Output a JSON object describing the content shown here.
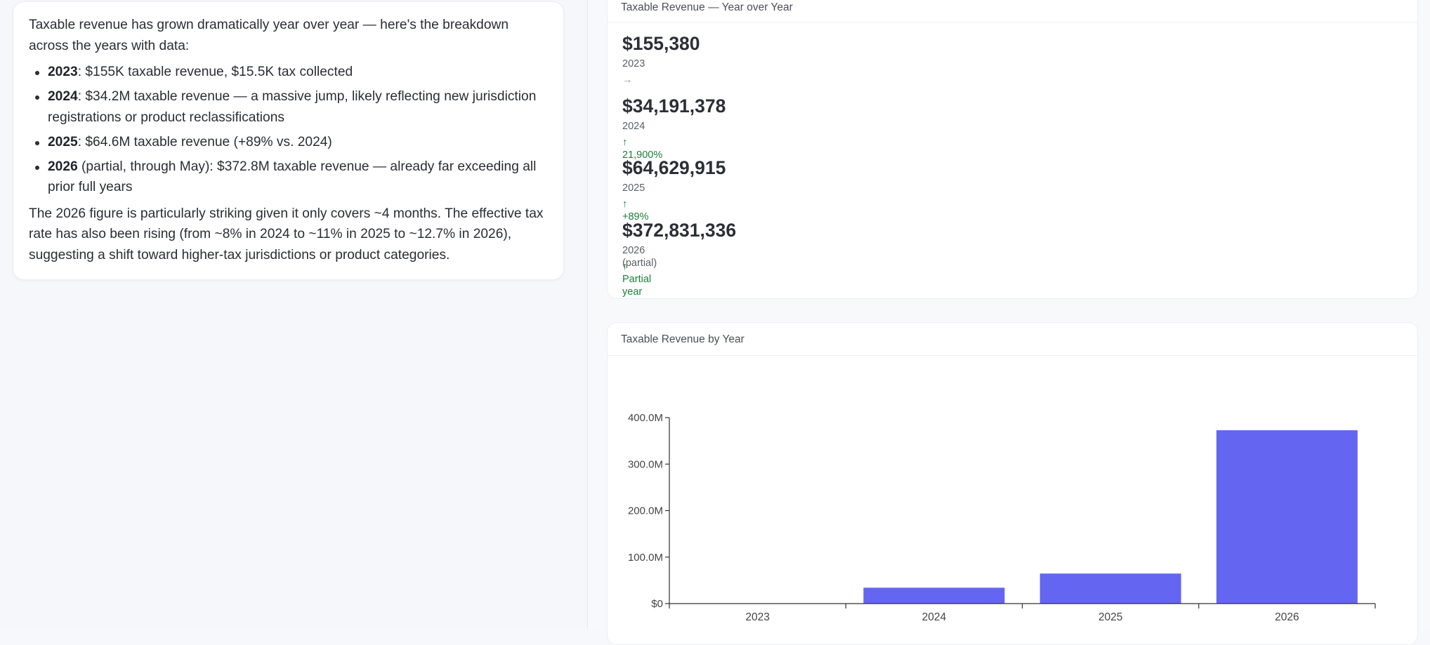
{
  "message": {
    "intro": "Taxable revenue has grown dramatically year over year — here's the breakdown across the years with data:",
    "bullets": [
      {
        "year": "2023",
        "text": ": $155K taxable revenue, $15.5K tax collected"
      },
      {
        "year": "2024",
        "text": ": $34.2M taxable revenue — a massive jump, likely reflecting new jurisdiction registrations or product reclassifications"
      },
      {
        "year": "2025",
        "text": ": $64.6M taxable revenue (+89% vs. 2024)"
      },
      {
        "year": "2026",
        "text": " (partial, through May): $372.8M taxable revenue — already far exceeding all prior full years"
      }
    ],
    "outro": "The 2026 figure is particularly striking given it only covers ~4 months. The effective tax rate has also been rising (from ~8% in 2024 to ~11% in 2025 to ~12.7% in 2026), suggesting a shift toward higher-tax jurisdictions or product categories."
  },
  "yoy_panel": {
    "title": "Taxable Revenue — Year over Year",
    "items": [
      {
        "value": "$155,380",
        "year": "2023",
        "change": "→"
      },
      {
        "value": "$34,191,378",
        "year": "2024",
        "change": "↑ 21,900%"
      },
      {
        "value": "$64,629,915",
        "year": "2025",
        "change": "↑ +89%"
      },
      {
        "value": "$372,831,336",
        "year": "2026 (partial)",
        "change": "↑ Partial year"
      }
    ]
  },
  "chart_panel": {
    "title": "Taxable Revenue by Year"
  },
  "colors": {
    "bar": "#6466f1",
    "positive": "#1a7f37"
  },
  "chart_data": {
    "type": "bar",
    "categories": [
      "2023",
      "2024",
      "2025",
      "2026"
    ],
    "values": [
      155380,
      34191378,
      64629915,
      372831336
    ],
    "title": "",
    "xlabel": "",
    "ylabel": "",
    "ylim": [
      0,
      400000000
    ],
    "yticks": [
      {
        "value": 0,
        "label": "$0"
      },
      {
        "value": 100000000,
        "label": "100.0M"
      },
      {
        "value": 200000000,
        "label": "200.0M"
      },
      {
        "value": 300000000,
        "label": "300.0M"
      },
      {
        "value": 400000000,
        "label": "400.0M"
      }
    ],
    "grid": false,
    "legend": "none"
  }
}
